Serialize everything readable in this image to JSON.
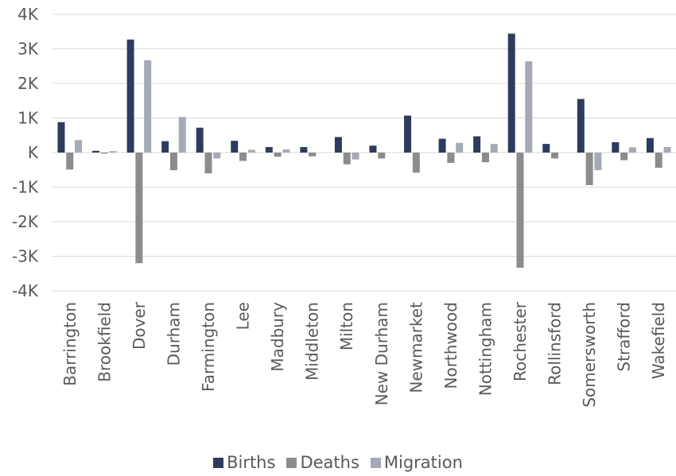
{
  "chart_data": {
    "type": "bar",
    "categories": [
      "Barrington",
      "Brookfield",
      "Dover",
      "Durham",
      "Farmington",
      "Lee",
      "Madbury",
      "Middleton",
      "Milton",
      "New Durham",
      "Newmarket",
      "Northwood",
      "Nottingham",
      "Rochester",
      "Rollinsford",
      "Somersworth",
      "Strafford",
      "Wakefield"
    ],
    "series": [
      {
        "name": "Births",
        "color": "#2e3b5e",
        "values": [
          880,
          50,
          3270,
          330,
          720,
          340,
          160,
          160,
          450,
          200,
          1070,
          400,
          470,
          3440,
          250,
          1550,
          300,
          420
        ]
      },
      {
        "name": "Deaths",
        "color": "#8c8c8c",
        "values": [
          -490,
          -30,
          -3200,
          -510,
          -600,
          -240,
          -120,
          -110,
          -340,
          -170,
          -580,
          -300,
          -280,
          -3330,
          -170,
          -940,
          -220,
          -440
        ]
      },
      {
        "name": "Migration",
        "color": "#a6a9b6",
        "values": [
          360,
          40,
          2670,
          1030,
          -170,
          80,
          90,
          0,
          -200,
          0,
          0,
          280,
          250,
          2640,
          0,
          -510,
          150,
          160
        ]
      }
    ],
    "ylim": [
      -4000,
      4000
    ],
    "yticks": [
      4000,
      3000,
      2000,
      1000,
      0,
      -1000,
      -2000,
      -3000,
      -4000
    ],
    "ytick_labels": [
      "4K",
      "3K",
      "2K",
      "1K",
      "K",
      "-1K",
      "-2K",
      "-3K",
      "-4K"
    ],
    "grid": true,
    "legend_position": "bottom"
  }
}
